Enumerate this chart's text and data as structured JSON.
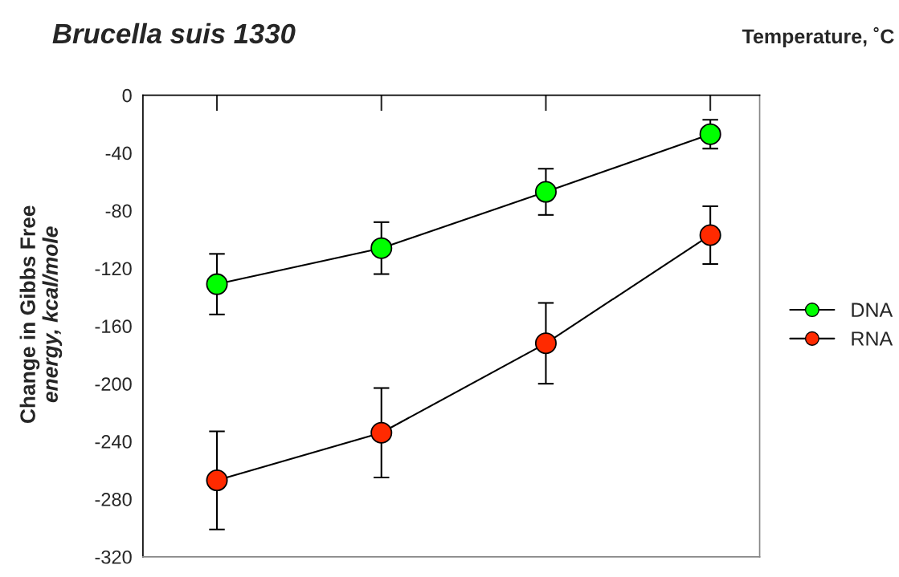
{
  "chart_data": {
    "type": "line",
    "title": "Brucella suis 1330",
    "xlabel": "Temperature, ˚C",
    "ylabel": "Change in Gibbs Free\nenergy, kcal/mole",
    "categories": [
      null,
      null,
      null,
      null
    ],
    "series": [
      {
        "name": "DNA",
        "color": "#00ff00",
        "values": [
          -131,
          -106,
          -67,
          -27
        ],
        "errors": [
          21,
          18,
          16,
          10
        ]
      },
      {
        "name": "RNA",
        "color": "#ff2a00",
        "values": [
          -267,
          -234,
          -172,
          -97
        ],
        "errors": [
          34,
          31,
          28,
          20
        ]
      }
    ],
    "ylim": [
      -320,
      0
    ],
    "yticks": [
      -320,
      -280,
      -240,
      -200,
      -160,
      -120,
      -80,
      -40,
      0
    ],
    "tick_labels": "y",
    "legend": "right",
    "marker": "circle",
    "line_style": "solid",
    "grid": false
  }
}
